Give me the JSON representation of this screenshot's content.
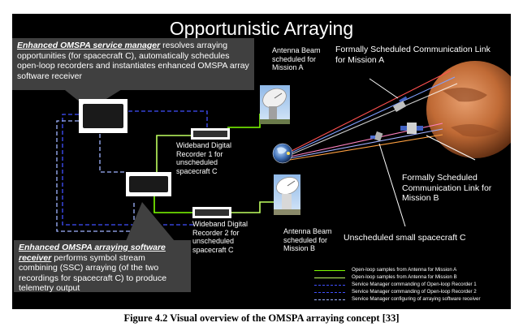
{
  "slide": {
    "title": "Opportunistic Arraying",
    "service_manager": {
      "bold": "Enhanced OMSPA service manager",
      "rest": " resolves arraying opportunities (for spacecraft C), automatically schedules open-loop recorders and instantiates enhanced OMSPA array software receiver"
    },
    "arraying_receiver": {
      "bold": "Enhanced OMSPA arraying software receiver",
      "rest": " performs symbol stream combining (SSC) arraying (of the two recordings for spacecraft C) to produce telemetry output"
    },
    "antenna_a_label": "Antenna Beam scheduled for Mission A",
    "antenna_b_label": "Antenna Beam scheduled for Mission B",
    "recorder1_label": "Wideband Digital Recorder 1 for unscheduled spacecraft C",
    "recorder2_label": "Wideband Digital Recorder 2  for unscheduled spacecraft  C",
    "link_a_label": "Formally Scheduled Communication Link for Mission A",
    "link_b_label": "Formally Scheduled Communication Link for Mission B",
    "small_sc_label": "Unscheduled small spacecraft C",
    "legend": [
      {
        "text": "Open-loop samples from Antenna for Mission A",
        "color": "#7fff00",
        "style": "solid"
      },
      {
        "text": "Open-loop samples from Antenna for Mission B",
        "color": "#bfff60",
        "style": "solid"
      },
      {
        "text": "Service Manager commanding of Open-loop Recorder 1",
        "color": "#4050ff",
        "style": "dash"
      },
      {
        "text": "Service Manager commanding of Open-loop Recorder 2",
        "color": "#4050ff",
        "style": "dash"
      },
      {
        "text": "Service Manager configuring of arraying software receiver",
        "color": "#9fb4ff",
        "style": "dash"
      }
    ],
    "colors": {
      "background": "#000000",
      "callout": "#404040",
      "green": "#7fff00",
      "blue_dash": "#4050ff",
      "light_blue_dash": "#9fb4ff",
      "mars": "#c8703a"
    }
  },
  "caption": "Figure 4.2 Visual overview of the OMSPA arraying concept [33]"
}
